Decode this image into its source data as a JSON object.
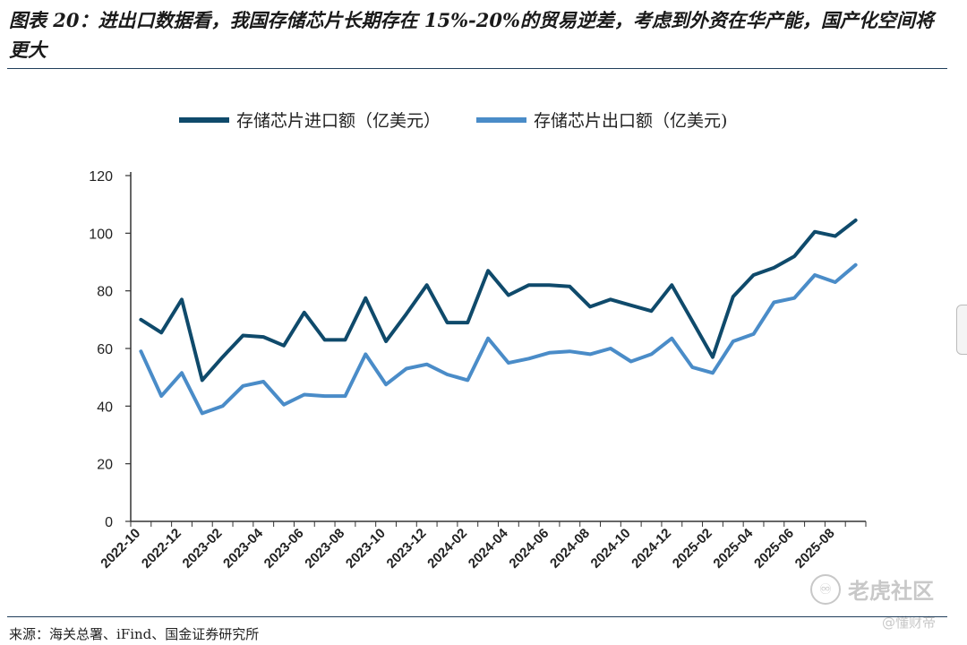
{
  "header": {
    "title": "图表 20：进出口数据看，我国存储芯片长期存在 15%-20%的贸易逆差，考虑到外资在华产能，国产化空间将更大"
  },
  "footer": {
    "source": "来源：海关总署、iFind、国金证券研究所"
  },
  "watermark": {
    "brand": "老虎社区",
    "logo_glyph": "♾",
    "sub": "@懂财帝"
  },
  "chart_data": {
    "type": "line",
    "title": "",
    "xlabel": "",
    "ylabel": "",
    "ylim": [
      0,
      120
    ],
    "yticks": [
      0,
      20,
      40,
      60,
      80,
      100,
      120
    ],
    "x": [
      "2022-10",
      "2022-11",
      "2022-12",
      "2023-01",
      "2023-02",
      "2023-03",
      "2023-04",
      "2023-05",
      "2023-06",
      "2023-07",
      "2023-08",
      "2023-09",
      "2023-10",
      "2023-11",
      "2023-12",
      "2024-01",
      "2024-02",
      "2024-03",
      "2024-04",
      "2024-05",
      "2024-06",
      "2024-07",
      "2024-08",
      "2024-09",
      "2024-10",
      "2024-11",
      "2024-12",
      "2025-01",
      "2025-02",
      "2025-03",
      "2025-04",
      "2025-05",
      "2025-06",
      "2025-07",
      "2025-08",
      "2025-09"
    ],
    "xtick_labels": [
      "2022-10",
      "2022-12",
      "2023-02",
      "2023-04",
      "2023-06",
      "2023-08",
      "2023-10",
      "2023-12",
      "2024-02",
      "2024-04",
      "2024-06",
      "2024-08",
      "2024-10",
      "2024-12",
      "2025-02",
      "2025-04",
      "2025-06",
      "2025-08"
    ],
    "legend_position": "top",
    "series": [
      {
        "name": "存储芯片进口额（亿美元）",
        "color": "#0f4a6b",
        "values": [
          70,
          65.5,
          77,
          49,
          57,
          64.5,
          64,
          61,
          72.5,
          63,
          63,
          77.5,
          62.5,
          72,
          82,
          69,
          69,
          87,
          78.5,
          82,
          82,
          81.5,
          74.5,
          77,
          75,
          73,
          82,
          69.5,
          57,
          78,
          85.5,
          88,
          92,
          100.5,
          99,
          104.5
        ]
      },
      {
        "name": "存储芯片出口额（亿美元)",
        "color": "#4a8cc8",
        "values": [
          59,
          43.5,
          51.5,
          37.5,
          40,
          47,
          48.5,
          40.5,
          44,
          43.5,
          43.5,
          58,
          47.5,
          53,
          54.5,
          51,
          49,
          63.5,
          55,
          56.5,
          58.5,
          59,
          58,
          60,
          55.5,
          58,
          63.5,
          53.5,
          51.5,
          62.5,
          65,
          76,
          77.5,
          85.5,
          83,
          89
        ]
      }
    ]
  }
}
